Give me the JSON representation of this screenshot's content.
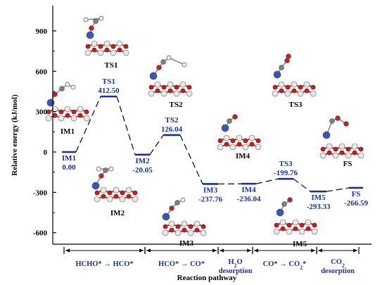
{
  "chart_data": {
    "type": "line",
    "ylabel": "Relative energy (kJ/mol)",
    "xlabel": "Reaction pathway",
    "ylim": [
      -700,
      1000
    ],
    "yticks": [
      900,
      600,
      300,
      0,
      -300,
      -600
    ],
    "y_tick_labels": [
      "900",
      "600",
      "300",
      "0",
      "-300",
      "-600"
    ],
    "states": [
      {
        "name": "IM1",
        "energy": 0.0,
        "energy_label": "0.00"
      },
      {
        "name": "TS1",
        "energy": 412.5,
        "energy_label": "412.50"
      },
      {
        "name": "IM2",
        "energy": -20.05,
        "energy_label": "-20.05"
      },
      {
        "name": "TS2",
        "energy": 126.04,
        "energy_label": "126.04"
      },
      {
        "name": "IM3",
        "energy": -237.76,
        "energy_label": "-237.76"
      },
      {
        "name": "IM4",
        "energy": -236.04,
        "energy_label": "-236.04"
      },
      {
        "name": "TS3",
        "energy": -199.76,
        "energy_label": "-199.76"
      },
      {
        "name": "IM5",
        "energy": -293.33,
        "energy_label": "-293.33"
      },
      {
        "name": "FS",
        "energy": -266.59,
        "energy_label": "-266.59"
      }
    ],
    "stages": [
      {
        "label": "HCHO* → HCO*",
        "states": [
          "IM1",
          "TS1",
          "IM2"
        ]
      },
      {
        "label": "HCO* → CO*",
        "states": [
          "IM2",
          "TS2",
          "IM3"
        ]
      },
      {
        "label": "H2O desorption",
        "line1": "H",
        "sub": "2",
        "line1b": "O",
        "line2": "desorption",
        "states": [
          "IM3",
          "IM4"
        ]
      },
      {
        "label": "CO* → CO2*",
        "text": "CO* → CO",
        "sub": "2",
        "tail": "*",
        "states": [
          "IM4",
          "TS3",
          "IM5"
        ]
      },
      {
        "label": "CO2 desorption",
        "line1": "CO",
        "sub": "2",
        "line2": "desorption",
        "states": [
          "IM5",
          "FS"
        ]
      }
    ],
    "structure_labels": [
      "TS1",
      "TS2",
      "TS3",
      "IM1",
      "IM4",
      "FS",
      "IM2",
      "IM3",
      "IM5"
    ],
    "colors": {
      "level": "#1a2f9e",
      "text": "#1a2f9e",
      "connector": "#000000",
      "titanium": "#3a55b8",
      "oxygen": "#c62020",
      "carbon": "#808080",
      "hydrogen": "#f2f2f2"
    }
  }
}
